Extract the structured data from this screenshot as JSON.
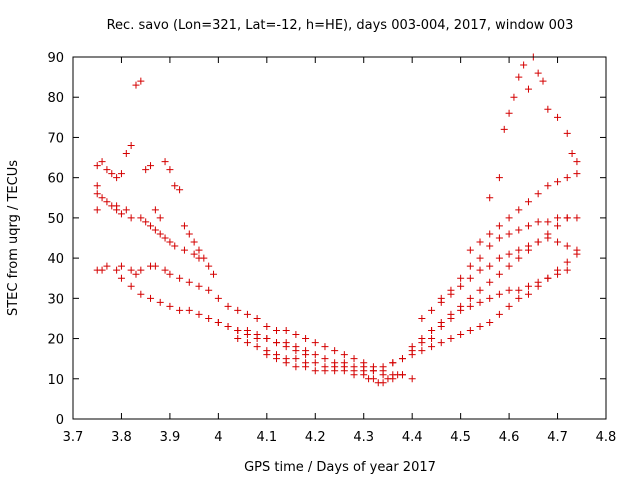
{
  "chart_data": {
    "type": "scatter",
    "title": "Rec. savo (Lon=321, Lat=-12, h=HE), days 003-004, 2017, window 003",
    "xlabel": "GPS time / Days of year 2017",
    "ylabel": "STEC from uqrg / TECUs",
    "xlim": [
      3.7,
      4.8
    ],
    "ylim": [
      0,
      90
    ],
    "xticks": [
      3.7,
      3.8,
      3.9,
      4.0,
      4.1,
      4.2,
      4.3,
      4.4,
      4.5,
      4.6,
      4.7,
      4.8
    ],
    "xtick_labels": [
      "3.7",
      "3.8",
      "3.9",
      "4",
      "4.1",
      "4.2",
      "4.3",
      "4.4",
      "4.5",
      "4.6",
      "4.7",
      "4.8"
    ],
    "yticks": [
      0,
      10,
      20,
      30,
      40,
      50,
      60,
      70,
      80,
      90
    ],
    "ytick_labels": [
      "0",
      "10",
      "20",
      "30",
      "40",
      "50",
      "60",
      "70",
      "80",
      "90"
    ],
    "marker": "+",
    "colors": {
      "series": "#d40000",
      "axis": "#000000",
      "background": "#ffffff"
    },
    "series": [
      {
        "name": "STEC",
        "x": [
          3.75,
          3.75,
          3.75,
          3.76,
          3.77,
          3.78,
          3.79,
          3.79,
          3.8,
          3.81,
          3.82,
          3.84,
          3.85,
          3.86,
          3.87,
          3.88,
          3.89,
          3.9,
          3.91,
          3.93,
          3.95,
          3.96,
          3.75,
          3.76,
          3.77,
          3.78,
          3.79,
          3.8,
          3.81,
          3.82,
          3.83,
          3.84,
          3.85,
          3.86,
          3.87,
          3.88,
          3.89,
          3.9,
          3.91,
          3.92,
          3.93,
          3.94,
          3.95,
          3.96,
          3.97,
          3.98,
          3.99,
          3.75,
          3.76,
          3.77,
          3.79,
          3.8,
          3.82,
          3.83,
          3.84,
          3.86,
          3.87,
          3.89,
          3.9,
          3.92,
          3.94,
          3.96,
          3.98,
          4.0,
          4.02,
          4.04,
          4.06,
          4.08,
          4.1,
          4.12,
          3.8,
          3.82,
          3.84,
          3.86,
          3.88,
          3.9,
          3.92,
          3.94,
          3.96,
          3.98,
          4.0,
          4.02,
          4.04,
          4.06,
          4.08,
          4.1,
          4.12,
          4.14,
          4.16,
          4.18,
          4.0,
          4.02,
          4.04,
          4.06,
          4.08,
          4.1,
          4.12,
          4.14,
          4.16,
          4.18,
          4.2,
          4.22,
          4.24,
          4.26,
          4.28,
          4.3,
          4.32,
          4.34,
          4.04,
          4.06,
          4.08,
          4.1,
          4.12,
          4.14,
          4.16,
          4.18,
          4.2,
          4.22,
          4.24,
          4.26,
          4.28,
          4.3,
          4.32,
          4.34,
          4.36,
          4.38,
          4.4,
          4.1,
          4.12,
          4.14,
          4.16,
          4.18,
          4.2,
          4.22,
          4.24,
          4.26,
          4.28,
          4.3,
          4.31,
          4.32,
          4.33,
          4.34,
          4.35,
          4.36,
          4.37,
          4.38,
          4.14,
          4.16,
          4.18,
          4.2,
          4.22,
          4.24,
          4.26,
          4.28,
          4.3,
          4.32,
          4.34,
          4.36,
          4.38,
          4.4,
          4.42,
          4.44,
          4.36,
          4.38,
          4.4,
          4.42,
          4.44,
          4.46,
          4.48,
          4.5,
          4.52,
          4.54,
          4.56,
          4.58,
          4.6,
          4.62,
          4.64,
          4.66,
          4.68,
          4.7,
          4.72,
          4.4,
          4.42,
          4.44,
          4.46,
          4.48,
          4.5,
          4.52,
          4.54,
          4.56,
          4.58,
          4.6,
          4.62,
          4.64,
          4.66,
          4.68,
          4.7,
          4.72,
          4.74,
          4.42,
          4.44,
          4.46,
          4.48,
          4.5,
          4.52,
          4.54,
          4.56,
          4.58,
          4.6,
          4.62,
          4.64,
          4.66,
          4.68,
          4.7,
          4.72,
          4.74,
          4.46,
          4.48,
          4.5,
          4.52,
          4.54,
          4.56,
          4.58,
          4.6,
          4.62,
          4.64,
          4.66,
          4.68,
          4.7,
          4.72,
          4.74,
          4.52,
          4.54,
          4.56,
          4.58,
          4.6,
          4.62,
          4.64,
          4.66,
          4.68,
          4.7,
          4.72,
          4.74,
          4.56,
          4.58,
          4.59,
          4.6,
          4.61,
          4.62,
          4.63,
          4.64,
          4.65,
          4.66,
          4.67,
          4.68,
          4.7,
          4.72,
          4.73,
          4.74,
          4.44,
          4.46,
          4.48,
          4.5,
          4.52,
          4.54,
          4.56,
          4.58,
          4.6,
          4.62,
          4.64,
          4.66,
          4.68,
          4.7,
          4.72
        ],
        "y": [
          58,
          56,
          52,
          55,
          54,
          53,
          53,
          52,
          51,
          52,
          50,
          50,
          49,
          48,
          47,
          46,
          45,
          44,
          43,
          42,
          41,
          40,
          63,
          64,
          62,
          61,
          60,
          61,
          66,
          68,
          83,
          84,
          62,
          63,
          52,
          50,
          64,
          62,
          58,
          57,
          48,
          46,
          44,
          42,
          40,
          38,
          36,
          37,
          37,
          38,
          37,
          38,
          37,
          36,
          37,
          38,
          38,
          37,
          36,
          35,
          34,
          33,
          32,
          30,
          28,
          27,
          26,
          25,
          23,
          22,
          35,
          33,
          31,
          30,
          29,
          28,
          27,
          27,
          26,
          25,
          24,
          23,
          22,
          22,
          21,
          20,
          19,
          19,
          18,
          17,
          24,
          23,
          22,
          21,
          20,
          20,
          19,
          18,
          17,
          16,
          16,
          15,
          14,
          14,
          13,
          13,
          12,
          12,
          20,
          19,
          18,
          17,
          16,
          15,
          15,
          14,
          14,
          13,
          13,
          13,
          12,
          12,
          12,
          11,
          11,
          11,
          10,
          16,
          15,
          14,
          13,
          13,
          12,
          12,
          12,
          12,
          11,
          11,
          10,
          10,
          9,
          9,
          10,
          10,
          11,
          11,
          22,
          21,
          20,
          19,
          18,
          17,
          16,
          15,
          14,
          13,
          13,
          14,
          15,
          17,
          19,
          20,
          14,
          15,
          16,
          17,
          18,
          19,
          20,
          21,
          22,
          23,
          24,
          26,
          28,
          30,
          31,
          33,
          35,
          36,
          37,
          18,
          20,
          22,
          23,
          25,
          27,
          28,
          29,
          30,
          31,
          32,
          32,
          33,
          34,
          35,
          37,
          39,
          41,
          25,
          27,
          29,
          31,
          33,
          35,
          37,
          38,
          40,
          41,
          42,
          43,
          44,
          45,
          44,
          43,
          42,
          30,
          32,
          35,
          38,
          40,
          43,
          45,
          46,
          47,
          48,
          49,
          49,
          50,
          50,
          50,
          42,
          44,
          46,
          48,
          50,
          52,
          54,
          56,
          58,
          59,
          60,
          61,
          55,
          60,
          72,
          76,
          80,
          85,
          88,
          82,
          90,
          86,
          84,
          77,
          75,
          71,
          66,
          64,
          22,
          24,
          26,
          28,
          30,
          32,
          34,
          36,
          38,
          40,
          42,
          44,
          46,
          48,
          50
        ]
      }
    ]
  }
}
